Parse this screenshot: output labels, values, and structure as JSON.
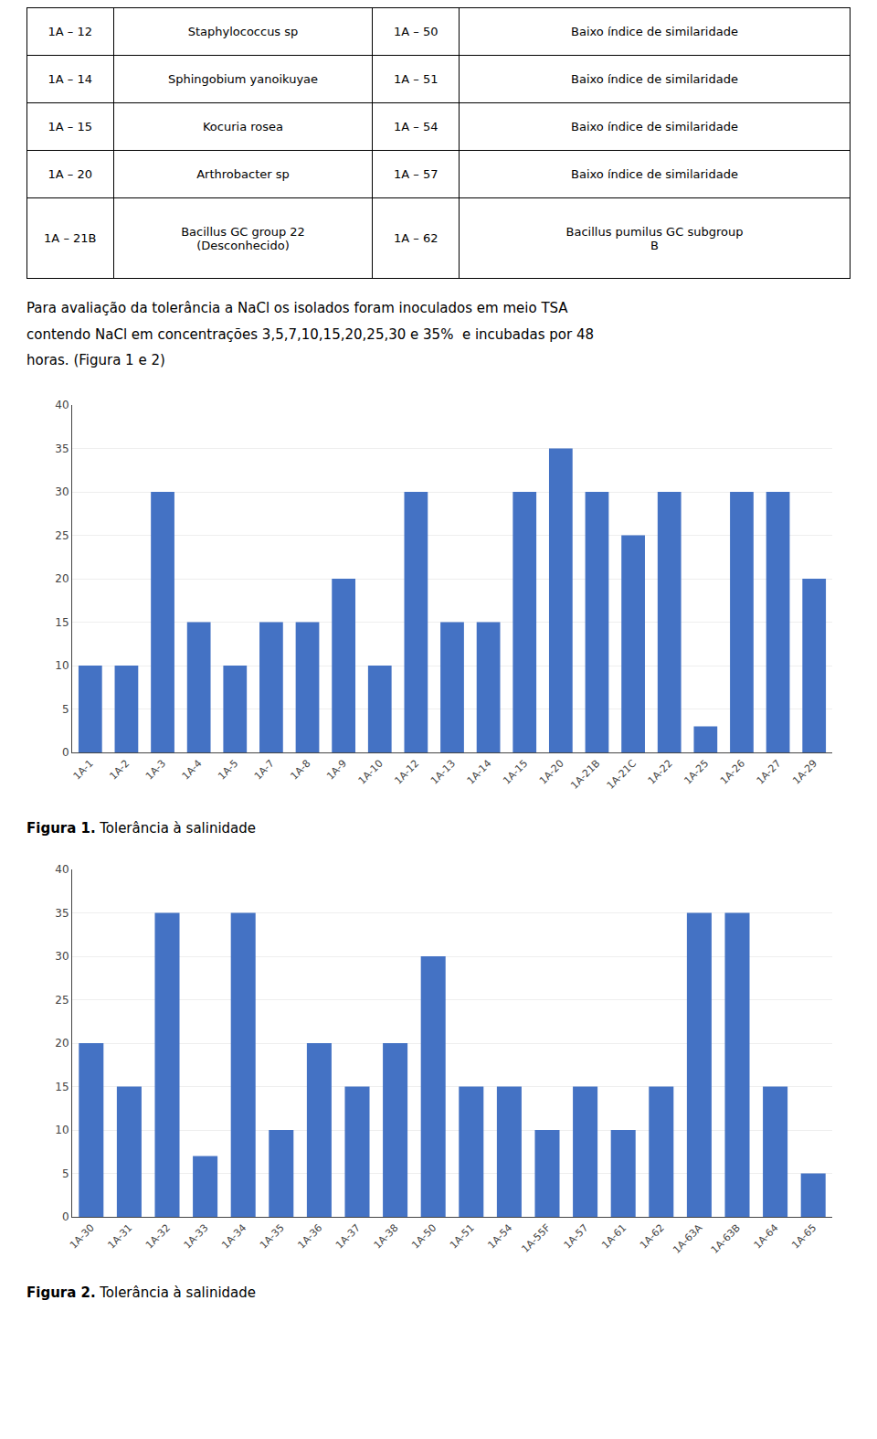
{
  "table": {
    "rows": [
      [
        "1A – 12",
        "Staphylococcus sp",
        "1A – 50",
        "Baixo índice de similaridade"
      ],
      [
        "1A – 14",
        "Sphingobium yanoikuyae",
        "1A – 51",
        "Baixo índice de similaridade"
      ],
      [
        "1A – 15",
        "Kocuria rosea",
        "1A – 54",
        "Baixo índice de similaridade"
      ],
      [
        "1A – 20",
        "Arthrobacter sp",
        "1A – 57",
        "Baixo índice de similaridade"
      ],
      [
        "1A – 21B",
        "Bacillus GC group 22\n(Desconhecido)",
        "1A – 62",
        "Bacillus pumilus GC subgroup\nB"
      ]
    ]
  },
  "paragraph_lines": [
    "Para avaliação da tolerância a NaCl os isolados foram inoculados em meio TSA",
    "contendo NaCl em concentrações 3,5,7,10,15,20,25,30 e 35%  e incubadas por 48",
    "horas. (Figura 1 e 2)"
  ],
  "chart_data": [
    {
      "type": "bar",
      "categories": [
        "1A-1",
        "1A-2",
        "1A-3",
        "1A-4",
        "1A-5",
        "1A-7",
        "1A-8",
        "1A-9",
        "1A-10",
        "1A-12",
        "1A-13",
        "1A-14",
        "1A-15",
        "1A-20",
        "1A-21B",
        "1A-21C",
        "1A-22",
        "1A-25",
        "1A-26",
        "1A-27",
        "1A-29"
      ],
      "values": [
        10,
        10,
        30,
        15,
        10,
        15,
        15,
        20,
        10,
        30,
        15,
        15,
        30,
        35,
        30,
        25,
        30,
        3,
        30,
        30,
        20
      ],
      "color": "#4472C4",
      "ylim": [
        0,
        40
      ],
      "yticks": [
        0,
        5,
        10,
        15,
        20,
        25,
        30,
        35,
        40
      ],
      "grid": true,
      "caption": {
        "bold": "Figura 1.",
        "text": "Tolerância à salinidade"
      }
    },
    {
      "type": "bar",
      "categories": [
        "1A-30",
        "1A-31",
        "1A-32",
        "1A-33",
        "1A-34",
        "1A-35",
        "1A-36",
        "1A-37",
        "1A-38",
        "1A-50",
        "1A-51",
        "1A-54",
        "1A-55F",
        "1A-57",
        "1A-61",
        "1A-62",
        "1A-63A",
        "1A-63B",
        "1A-64",
        "1A-65"
      ],
      "values": [
        20,
        15,
        35,
        7,
        35,
        10,
        20,
        15,
        20,
        30,
        15,
        15,
        10,
        15,
        10,
        15,
        35,
        35,
        15,
        5
      ],
      "color": "#4472C4",
      "ylim": [
        0,
        40
      ],
      "yticks": [
        0,
        5,
        10,
        15,
        20,
        25,
        30,
        35,
        40
      ],
      "grid": true,
      "caption": {
        "bold": "Figura 2.",
        "text": "Tolerância à salinidade"
      }
    }
  ]
}
